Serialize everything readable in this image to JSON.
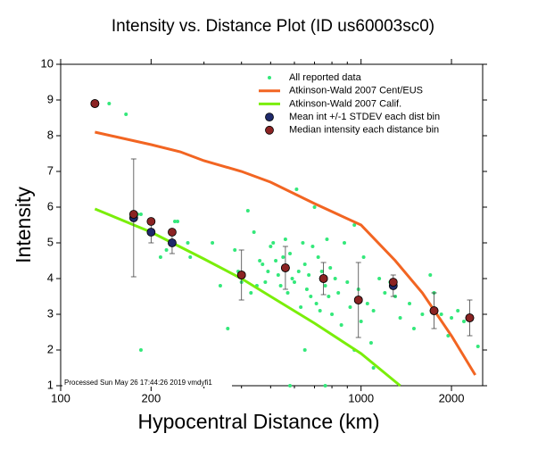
{
  "chart_data": {
    "type": "scatter",
    "title": "Intensity vs. Distance Plot (ID us60003sc0)",
    "x_label": "Hypocentral Distance (km)",
    "y_label": "Intensity",
    "annotation": "Processed Sun May 26 17:44:26 2019 vmdyfi1",
    "x_scale": "log",
    "xlim": [
      100,
      2540
    ],
    "ylim": [
      1,
      10
    ],
    "xticks": [
      100,
      200,
      1000,
      2000
    ],
    "xminorticks": [
      300,
      400,
      500,
      600,
      700,
      800,
      900
    ],
    "yticks": [
      1,
      2,
      3,
      4,
      5,
      6,
      7,
      8,
      9,
      10
    ],
    "legend": "top-right",
    "series": [
      {
        "name": "All reported data",
        "type": "scatter",
        "color": "#33e87a",
        "x": [
          145,
          165,
          180,
          185,
          215,
          225,
          240,
          245,
          265,
          270,
          185,
          320,
          340,
          360,
          380,
          390,
          400,
          420,
          430,
          440,
          450,
          460,
          470,
          480,
          490,
          500,
          510,
          520,
          530,
          540,
          550,
          560,
          570,
          580,
          590,
          600,
          610,
          620,
          630,
          640,
          650,
          660,
          670,
          680,
          690,
          700,
          710,
          720,
          730,
          740,
          760,
          770,
          780,
          790,
          800,
          820,
          840,
          860,
          880,
          900,
          920,
          950,
          980,
          1000,
          1020,
          1050,
          1080,
          1100,
          1150,
          1200,
          1250,
          1300,
          1350,
          1450,
          1500,
          1600,
          1700,
          1750,
          1850,
          1950,
          2000,
          2100,
          2200,
          2450,
          580,
          650,
          950,
          1100,
          760
        ],
        "values": [
          8.9,
          8.6,
          5.8,
          5.8,
          4.6,
          4.8,
          5.6,
          5.6,
          5.0,
          4.6,
          2.0,
          5.0,
          3.8,
          2.6,
          4.8,
          4.2,
          3.9,
          5.9,
          3.6,
          5.3,
          3.8,
          4.5,
          4.4,
          3.9,
          4.2,
          4.9,
          5.0,
          4.5,
          4.1,
          3.8,
          4.6,
          5.1,
          3.6,
          4.7,
          4.0,
          3.9,
          6.5,
          4.2,
          3.2,
          5.0,
          4.4,
          3.7,
          4.1,
          3.5,
          4.9,
          6.0,
          3.3,
          4.6,
          3.1,
          4.2,
          3.8,
          5.1,
          3.5,
          4.3,
          3.0,
          4.0,
          3.6,
          2.7,
          5.0,
          3.9,
          3.2,
          5.5,
          3.7,
          2.8,
          4.6,
          3.3,
          2.2,
          3.1,
          4.0,
          3.6,
          3.9,
          3.5,
          2.9,
          3.3,
          2.6,
          3.0,
          4.1,
          3.6,
          3.0,
          2.4,
          2.9,
          3.1,
          2.8,
          2.1,
          1.0,
          2.0,
          2.0,
          1.5,
          1.0
        ]
      },
      {
        "name": "Atkinson-Wald 2007 Cent/EUS",
        "type": "line",
        "color": "#f26522",
        "x": [
          130,
          200,
          250,
          300,
          400,
          500,
          700,
          1000,
          1300,
          1600,
          2000,
          2400
        ],
        "values": [
          8.1,
          7.75,
          7.55,
          7.3,
          7.0,
          6.7,
          6.1,
          5.5,
          4.5,
          3.6,
          2.4,
          1.3
        ]
      },
      {
        "name": "Atkinson-Wald 2007 Calif.",
        "type": "line",
        "color": "#7aee0a",
        "x": [
          130,
          200,
          300,
          400,
          500,
          700,
          1000,
          1350
        ],
        "values": [
          5.95,
          5.3,
          4.55,
          4.0,
          3.5,
          2.75,
          1.9,
          1.0
        ]
      },
      {
        "name": "Mean int +/-1 STDEV each dist bin",
        "type": "errorbar",
        "color": "#1f2a6b",
        "x": [
          130,
          175,
          200,
          235,
          400,
          560,
          750,
          980,
          1280,
          1750,
          2300
        ],
        "values": [
          8.9,
          5.7,
          5.3,
          5.0,
          4.1,
          4.3,
          4.0,
          3.4,
          3.8,
          3.1,
          2.9
        ],
        "errors": [
          0,
          1.65,
          0.3,
          0.3,
          0.7,
          0.6,
          0.45,
          1.05,
          0.3,
          0.5,
          0.5
        ]
      },
      {
        "name": "Median intensity each distance bin",
        "type": "scatter",
        "color": "#8b2323",
        "marker_size": 4.5,
        "x": [
          130,
          175,
          200,
          235,
          400,
          560,
          750,
          980,
          1280,
          1750,
          2300
        ],
        "values": [
          8.9,
          5.8,
          5.6,
          5.3,
          4.1,
          4.3,
          4.0,
          3.4,
          3.9,
          3.1,
          2.9
        ]
      }
    ]
  }
}
